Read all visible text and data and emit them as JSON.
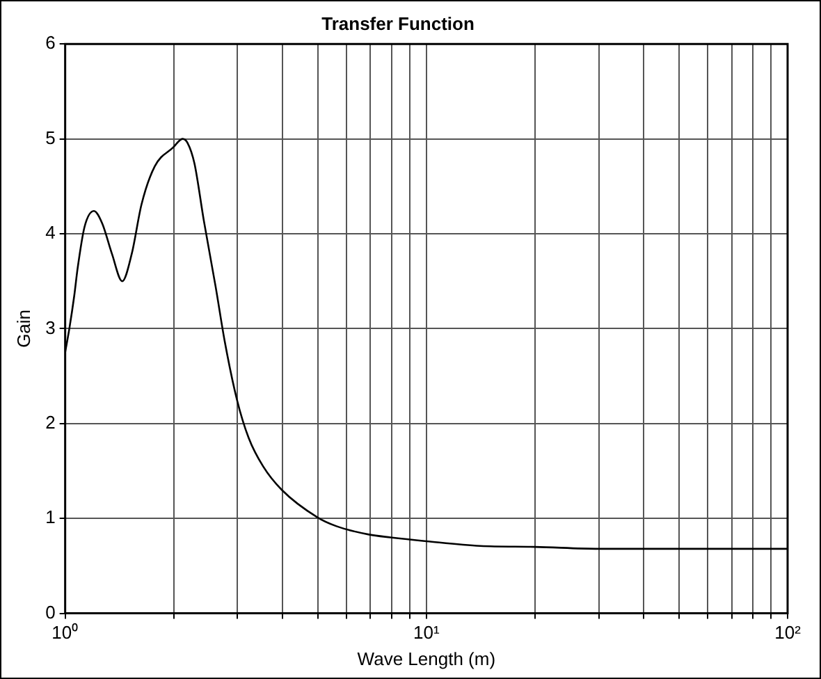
{
  "chart_data": {
    "type": "line",
    "title": "Transfer Function",
    "xlabel": "Wave Length (m)",
    "ylabel": "Gain",
    "log": "x",
    "grid": true,
    "legend": false,
    "marker": "none",
    "line_style": "solid",
    "xlim": [
      1,
      100
    ],
    "ylim": [
      0,
      6
    ],
    "xticks": [
      {
        "value": 1,
        "label": "10⁰"
      },
      {
        "value": 2,
        "label": null
      },
      {
        "value": 3,
        "label": null
      },
      {
        "value": 4,
        "label": null
      },
      {
        "value": 5,
        "label": null
      },
      {
        "value": 6,
        "label": null
      },
      {
        "value": 7,
        "label": null
      },
      {
        "value": 8,
        "label": null
      },
      {
        "value": 9,
        "label": null
      },
      {
        "value": 10,
        "label": "10¹"
      },
      {
        "value": 20,
        "label": null
      },
      {
        "value": 30,
        "label": null
      },
      {
        "value": 40,
        "label": null
      },
      {
        "value": 50,
        "label": null
      },
      {
        "value": 60,
        "label": null
      },
      {
        "value": 70,
        "label": null
      },
      {
        "value": 80,
        "label": null
      },
      {
        "value": 90,
        "label": null
      },
      {
        "value": 100,
        "label": "10²"
      }
    ],
    "yticks": [
      0,
      1,
      2,
      3,
      4,
      5,
      6
    ],
    "series": [
      {
        "color": "#000000",
        "x": [
          1.0,
          1.027,
          1.059,
          1.083,
          1.131,
          1.201,
          1.266,
          1.347,
          1.439,
          1.529,
          1.627,
          1.77,
          1.991,
          2.115,
          2.18,
          2.28,
          2.42,
          2.61,
          2.77,
          2.99,
          3.22,
          3.53,
          3.98,
          5.0,
          5.62,
          6.94,
          7.96,
          10.0,
          14.1,
          20,
          30,
          100
        ],
        "values": [
          2.75,
          3.0,
          3.34,
          3.64,
          4.07,
          4.24,
          4.11,
          3.79,
          3.5,
          3.79,
          4.31,
          4.71,
          4.91,
          5.0,
          4.96,
          4.74,
          4.14,
          3.44,
          2.85,
          2.25,
          1.85,
          1.55,
          1.3,
          1.01,
          0.92,
          0.83,
          0.8,
          0.76,
          0.71,
          0.7,
          0.68,
          0.68
        ]
      }
    ]
  }
}
